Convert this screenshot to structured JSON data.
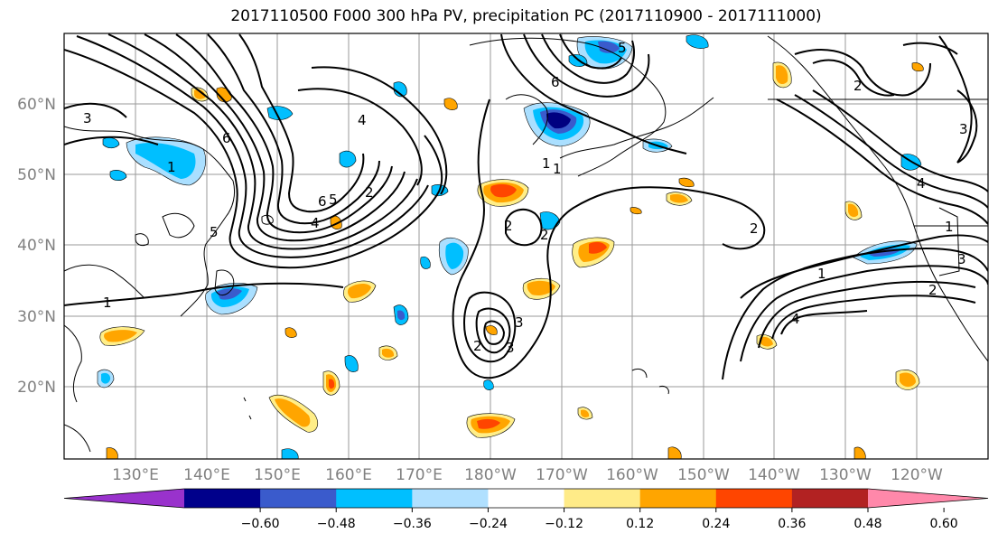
{
  "title": "2017110500 F000 300 hPa PV, precipitation PC (2017110900 - 2017111000)",
  "map": {
    "lat_labels": [
      "60°N",
      "50°N",
      "40°N",
      "30°N",
      "20°N"
    ],
    "lon_labels": [
      "130°E",
      "140°E",
      "150°E",
      "160°E",
      "170°E",
      "180°W",
      "170°W",
      "160°W",
      "150°W",
      "140°W",
      "130°W",
      "120°W"
    ],
    "pv_contour_labels": [
      "3",
      "1",
      "6",
      "5",
      "4",
      "2",
      "1",
      "6",
      "5",
      "4",
      "3",
      "2",
      "3",
      "2",
      "2",
      "1",
      "2",
      "6",
      "5",
      "4",
      "3",
      "2",
      "1",
      "1",
      "4",
      "3",
      "2",
      "1"
    ],
    "colors": {
      "positive": [
        "#ffee88",
        "#ffa500",
        "#ff4500",
        "#b22222",
        "#ff88aa"
      ],
      "negative": [
        "#aadfff",
        "#00bfff",
        "#3a5bcc",
        "#000080",
        "#9a32cd"
      ]
    }
  },
  "colorbar": {
    "ticks": [
      "−0.60",
      "−0.48",
      "−0.36",
      "−0.24",
      "−0.12",
      "0.12",
      "0.24",
      "0.36",
      "0.48",
      "0.60"
    ],
    "colors": [
      "#9932cc",
      "#00008b",
      "#3a5bcc",
      "#00bfff",
      "#b0e0ff",
      "#ffffff",
      "#ffeb88",
      "#ffa500",
      "#ff4500",
      "#b22222",
      "#ff88aa"
    ]
  }
}
